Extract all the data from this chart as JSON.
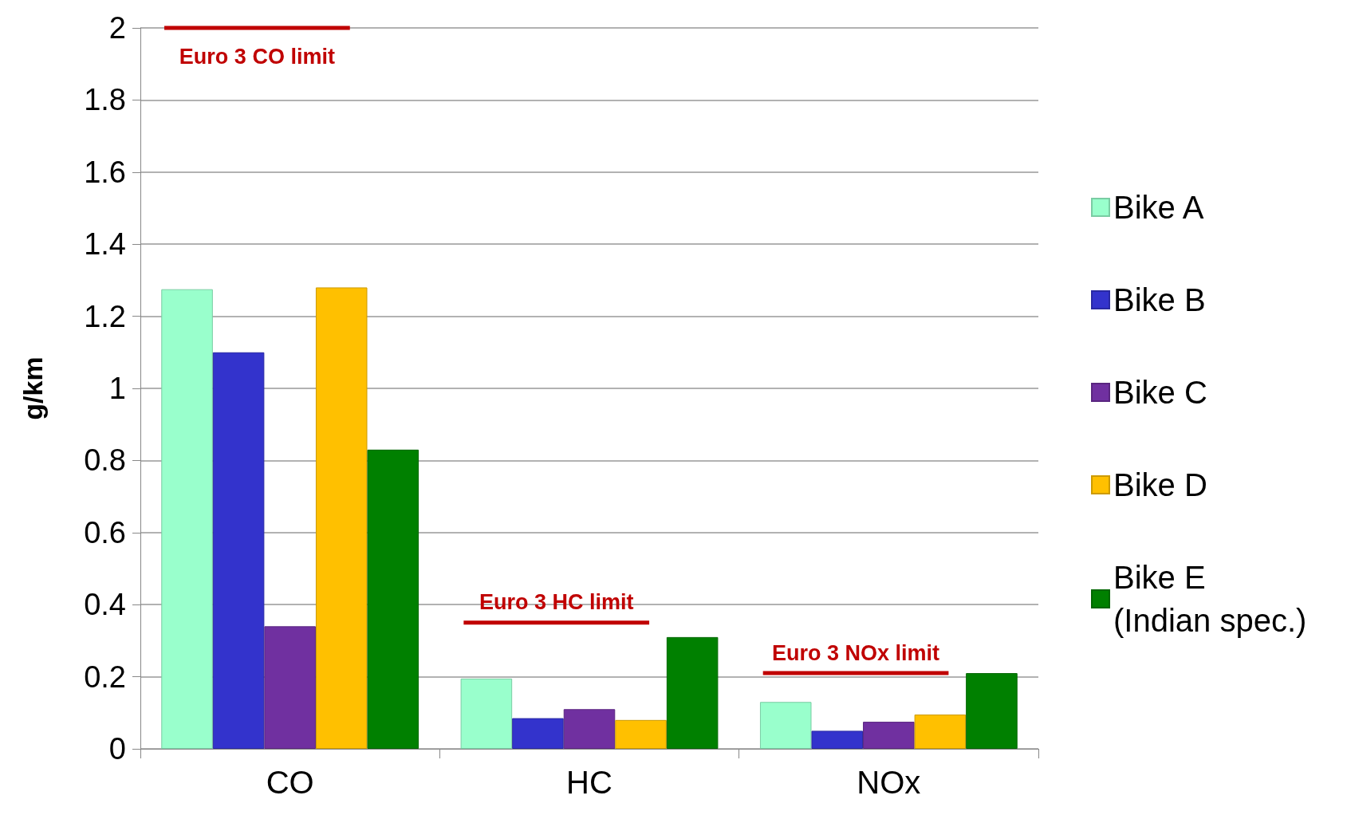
{
  "chart_data": {
    "type": "bar",
    "ylabel": "g/km",
    "categories": [
      "CO",
      "HC",
      "NOx"
    ],
    "series": [
      {
        "name": "Bike A",
        "color": "#99ffcc",
        "values": [
          1.275,
          0.195,
          0.13
        ]
      },
      {
        "name": "Bike B",
        "color": "#3333cc",
        "values": [
          1.1,
          0.085,
          0.05
        ]
      },
      {
        "name": "Bike C",
        "color": "#7030a0",
        "values": [
          0.34,
          0.11,
          0.075
        ]
      },
      {
        "name": "Bike D",
        "color": "#ffc000",
        "values": [
          1.28,
          0.08,
          0.095
        ]
      },
      {
        "name": "Bike E\n(Indian spec.)",
        "color": "#008000",
        "values": [
          0.83,
          0.31,
          0.21
        ]
      }
    ],
    "ref_lines": [
      {
        "axis": "y",
        "value": 2,
        "label": "Euro 3 CO limit",
        "color": "#c00000"
      },
      {
        "axis": "y",
        "value": 0.35,
        "label": "Euro 3 HC limit",
        "color": "#c00000"
      },
      {
        "axis": "y",
        "value": 0.21,
        "label": "Euro 3 NOx limit",
        "color": "#c00000"
      }
    ],
    "ylim": [
      0,
      2
    ],
    "yticks": [
      0,
      0.2,
      0.4,
      0.6,
      0.8,
      1,
      1.2,
      1.4,
      1.6,
      1.8,
      2
    ],
    "grid": "y",
    "legend": "right"
  }
}
